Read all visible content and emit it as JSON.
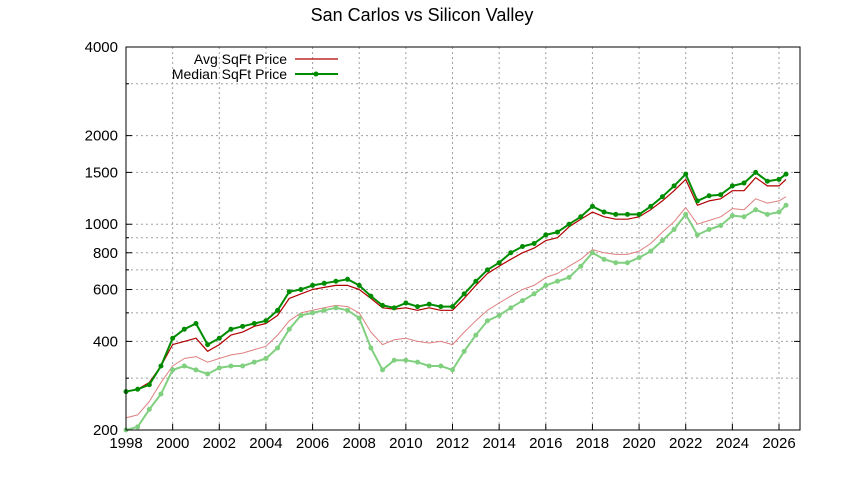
{
  "chart_data": {
    "type": "line",
    "title": "San Carlos vs Silicon Valley",
    "y_scale": "log",
    "ylim": [
      200,
      4000
    ],
    "xlim": [
      1998,
      2026.9
    ],
    "grid": true,
    "legend_position": "top-left",
    "x_ticks": [
      "1998",
      "2000",
      "2002",
      "2004",
      "2006",
      "2008",
      "2010",
      "2012",
      "2014",
      "2016",
      "2018",
      "2020",
      "2022",
      "2024",
      "2026"
    ],
    "y_ticks": [
      "200",
      "400",
      "600",
      "800",
      "1000",
      "1500",
      "2000",
      "4000"
    ],
    "legend": [
      "Avg SqFt Price",
      "Median SqFt Price"
    ],
    "colors": {
      "avg_dark": "#b00000",
      "avg_light": "#e08080",
      "median_dark": "#008c00",
      "median_light": "#80d080",
      "grid": "#a0a0a0",
      "axis": "#000000"
    },
    "series": [
      {
        "name": "Avg SqFt Price",
        "group": "San Carlos",
        "style": "dark-red-line",
        "x": [
          1998.0,
          1998.5,
          1999.0,
          1999.5,
          2000.0,
          2000.5,
          2001.0,
          2001.5,
          2002.0,
          2002.5,
          2003.0,
          2003.5,
          2004.0,
          2004.5,
          2005.0,
          2005.5,
          2006.0,
          2006.5,
          2007.0,
          2007.5,
          2008.0,
          2008.5,
          2009.0,
          2009.5,
          2010.0,
          2010.5,
          2011.0,
          2011.5,
          2012.0,
          2012.5,
          2013.0,
          2013.5,
          2014.0,
          2014.5,
          2015.0,
          2015.5,
          2016.0,
          2016.5,
          2017.0,
          2017.5,
          2018.0,
          2018.5,
          2019.0,
          2019.5,
          2020.0,
          2020.5,
          2021.0,
          2021.5,
          2022.0,
          2022.5,
          2023.0,
          2023.5,
          2024.0,
          2024.5,
          2025.0,
          2025.5,
          2026.0,
          2026.3
        ],
        "y": [
          270,
          275,
          290,
          330,
          390,
          400,
          410,
          370,
          390,
          420,
          430,
          450,
          460,
          490,
          560,
          580,
          600,
          610,
          620,
          620,
          600,
          560,
          520,
          515,
          520,
          510,
          520,
          510,
          510,
          560,
          620,
          680,
          720,
          760,
          800,
          830,
          880,
          900,
          980,
          1040,
          1100,
          1060,
          1040,
          1040,
          1060,
          1120,
          1200,
          1300,
          1420,
          1160,
          1200,
          1220,
          1300,
          1300,
          1440,
          1350,
          1350,
          1420
        ]
      },
      {
        "name": "Median SqFt Price",
        "group": "San Carlos",
        "style": "dark-green-line-markers",
        "x": [
          1998.0,
          1998.5,
          1999.0,
          1999.5,
          2000.0,
          2000.5,
          2001.0,
          2001.5,
          2002.0,
          2002.5,
          2003.0,
          2003.5,
          2004.0,
          2004.5,
          2005.0,
          2005.5,
          2006.0,
          2006.5,
          2007.0,
          2007.5,
          2008.0,
          2008.5,
          2009.0,
          2009.5,
          2010.0,
          2010.5,
          2011.0,
          2011.5,
          2012.0,
          2012.5,
          2013.0,
          2013.5,
          2014.0,
          2014.5,
          2015.0,
          2015.5,
          2016.0,
          2016.5,
          2017.0,
          2017.5,
          2018.0,
          2018.5,
          2019.0,
          2019.5,
          2020.0,
          2020.5,
          2021.0,
          2021.5,
          2022.0,
          2022.5,
          2023.0,
          2023.5,
          2024.0,
          2024.5,
          2025.0,
          2025.5,
          2026.0,
          2026.3
        ],
        "y": [
          270,
          275,
          285,
          330,
          410,
          440,
          460,
          390,
          410,
          440,
          450,
          460,
          470,
          510,
          590,
          600,
          620,
          630,
          640,
          650,
          620,
          570,
          530,
          520,
          540,
          525,
          535,
          525,
          525,
          580,
          640,
          700,
          740,
          800,
          840,
          860,
          920,
          940,
          1000,
          1060,
          1150,
          1100,
          1080,
          1080,
          1080,
          1150,
          1240,
          1350,
          1480,
          1200,
          1250,
          1260,
          1350,
          1380,
          1500,
          1400,
          1420,
          1480
        ]
      },
      {
        "name": "",
        "group": "Silicon Valley",
        "style": "light-red-line",
        "x": [
          1998.0,
          1998.5,
          1999.0,
          1999.5,
          2000.0,
          2000.5,
          2001.0,
          2001.5,
          2002.0,
          2002.5,
          2003.0,
          2003.5,
          2004.0,
          2004.5,
          2005.0,
          2005.5,
          2006.0,
          2006.5,
          2007.0,
          2007.5,
          2008.0,
          2008.5,
          2009.0,
          2009.5,
          2010.0,
          2010.5,
          2011.0,
          2011.5,
          2012.0,
          2012.5,
          2013.0,
          2013.5,
          2014.0,
          2014.5,
          2015.0,
          2015.5,
          2016.0,
          2016.5,
          2017.0,
          2017.5,
          2018.0,
          2018.5,
          2019.0,
          2019.5,
          2020.0,
          2020.5,
          2021.0,
          2021.5,
          2022.0,
          2022.5,
          2023.0,
          2023.5,
          2024.0,
          2024.5,
          2025.0,
          2025.5,
          2026.0,
          2026.3
        ],
        "y": [
          220,
          225,
          250,
          290,
          330,
          350,
          355,
          340,
          350,
          360,
          365,
          375,
          385,
          420,
          470,
          500,
          510,
          520,
          530,
          525,
          500,
          430,
          390,
          405,
          410,
          400,
          395,
          400,
          390,
          430,
          470,
          510,
          540,
          570,
          600,
          620,
          660,
          680,
          720,
          760,
          820,
          800,
          790,
          790,
          810,
          860,
          940,
          1020,
          1140,
          1000,
          1030,
          1060,
          1130,
          1120,
          1220,
          1180,
          1200,
          1240
        ]
      },
      {
        "name": "",
        "group": "Silicon Valley",
        "style": "light-green-line-markers",
        "x": [
          1998.0,
          1998.5,
          1999.0,
          1999.5,
          2000.0,
          2000.5,
          2001.0,
          2001.5,
          2002.0,
          2002.5,
          2003.0,
          2003.5,
          2004.0,
          2004.5,
          2005.0,
          2005.5,
          2006.0,
          2006.5,
          2007.0,
          2007.5,
          2008.0,
          2008.5,
          2009.0,
          2009.5,
          2010.0,
          2010.5,
          2011.0,
          2011.5,
          2012.0,
          2012.5,
          2013.0,
          2013.5,
          2014.0,
          2014.5,
          2015.0,
          2015.5,
          2016.0,
          2016.5,
          2017.0,
          2017.5,
          2018.0,
          2018.5,
          2019.0,
          2019.5,
          2020.0,
          2020.5,
          2021.0,
          2021.5,
          2022.0,
          2022.5,
          2023.0,
          2023.5,
          2024.0,
          2024.5,
          2025.0,
          2025.5,
          2026.0,
          2026.3
        ],
        "y": [
          200,
          205,
          235,
          265,
          320,
          330,
          320,
          310,
          325,
          330,
          330,
          340,
          350,
          380,
          440,
          490,
          500,
          510,
          520,
          510,
          480,
          380,
          320,
          345,
          345,
          340,
          330,
          330,
          320,
          370,
          420,
          470,
          490,
          520,
          550,
          580,
          620,
          640,
          660,
          720,
          800,
          760,
          740,
          740,
          770,
          810,
          880,
          960,
          1080,
          920,
          960,
          990,
          1070,
          1060,
          1120,
          1080,
          1100,
          1160
        ]
      }
    ]
  }
}
